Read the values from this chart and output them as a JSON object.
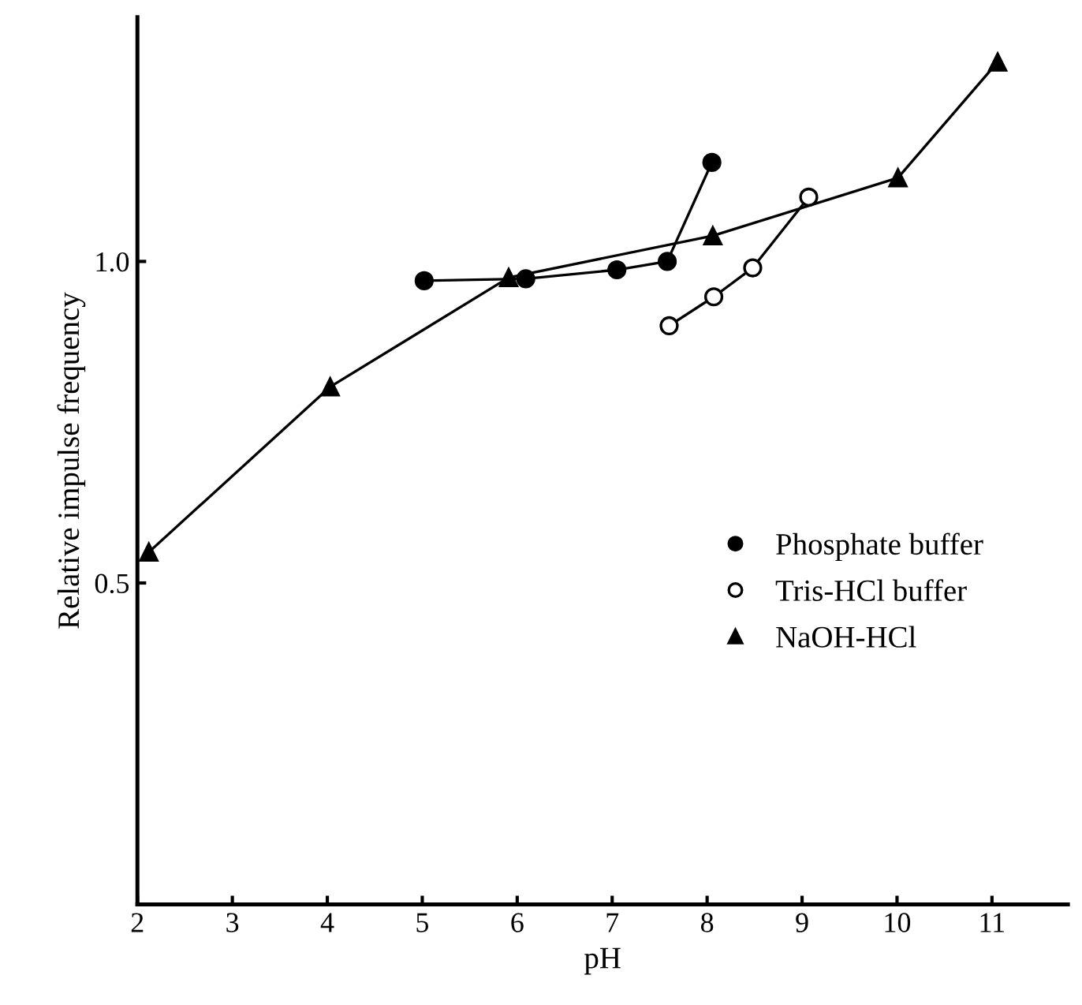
{
  "chart_data": {
    "type": "line",
    "xlabel": "pH",
    "ylabel": "Relative impulse frequency",
    "xlim": [
      2,
      11.8
    ],
    "xticks": [
      2,
      3,
      4,
      5,
      6,
      7,
      8,
      9,
      10,
      11
    ],
    "ylim": [
      0,
      1.38
    ],
    "yticks": [
      {
        "value": 0.5,
        "label": "0.5"
      },
      {
        "value": 1.0,
        "label": "1.0"
      }
    ],
    "grid": false,
    "legend": "right",
    "line_style": "solid",
    "series": [
      {
        "name": "Phosphate buffer",
        "color": "#000000",
        "marker": "circle",
        "x": [
          5.02,
          6.09,
          7.05,
          7.58,
          8.05
        ],
        "values": [
          0.97,
          0.973,
          0.987,
          1.0,
          1.154
        ]
      },
      {
        "name": "Tris-HCl buffer",
        "color": "#ffffff",
        "marker": "circle",
        "x": [
          7.6,
          8.07,
          8.48,
          9.07
        ],
        "values": [
          0.9,
          0.945,
          0.99,
          1.1
        ]
      },
      {
        "name": "NaOH-HCl",
        "color": "#000000",
        "marker": "triangle",
        "x": [
          2.12,
          4.03,
          5.91,
          8.06,
          10.01,
          11.06
        ],
        "values": [
          0.548,
          0.805,
          0.975,
          1.04,
          1.13,
          1.31
        ]
      }
    ]
  }
}
